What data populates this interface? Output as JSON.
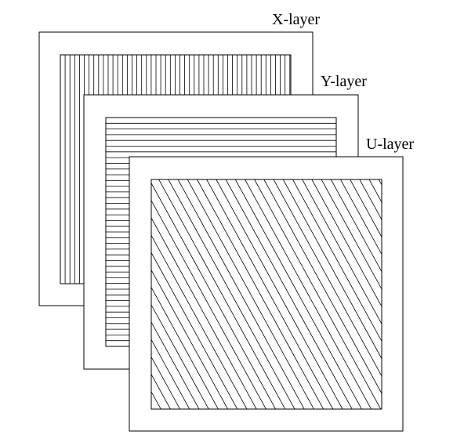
{
  "colors": {
    "background": "#ffffff",
    "stroke": "#000000"
  },
  "layers": [
    {
      "label": "X-layer",
      "hatch": "vertical-lines"
    },
    {
      "label": "Y-layer",
      "hatch": "horizontal-lines"
    },
    {
      "label": "U-layer",
      "hatch": "diagonal-lines"
    }
  ]
}
